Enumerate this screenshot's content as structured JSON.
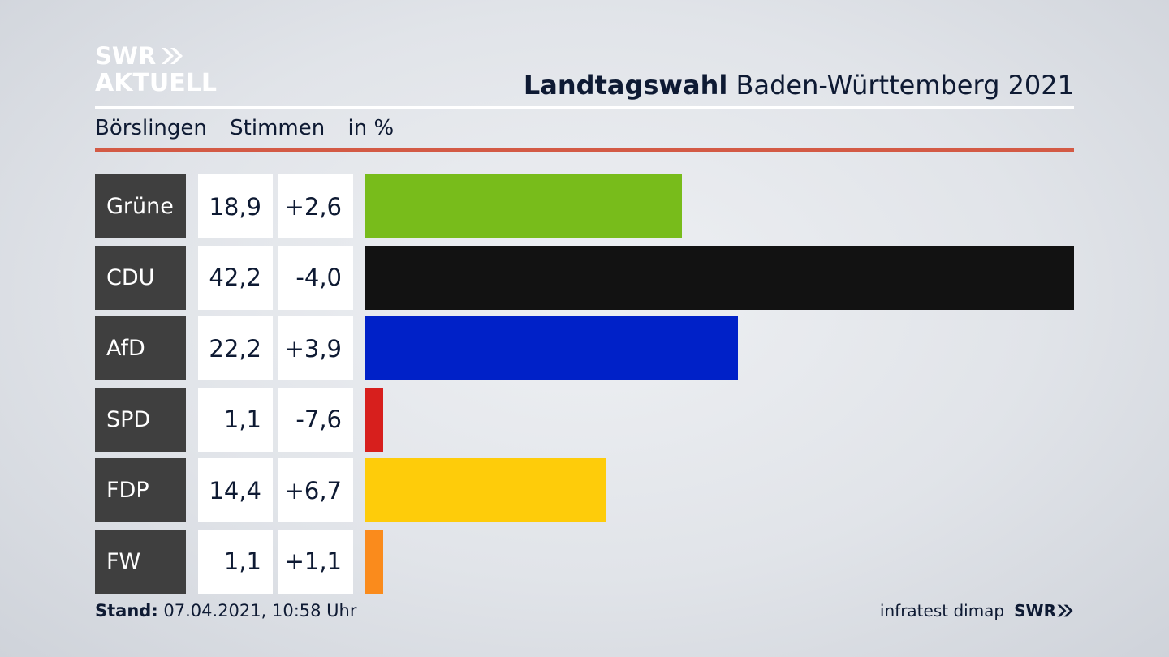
{
  "branding": {
    "logo_line1": "SWR",
    "logo_line2": "AKTUELL",
    "footer_brand": "SWR",
    "brand_color": "#ffffff"
  },
  "header": {
    "title_bold": "Landtagswahl",
    "title_rest": " Baden-Württemberg 2021"
  },
  "subheader": {
    "location": "Börslingen",
    "metric": "Stimmen",
    "unit": "in %",
    "accent_color": "#d35a45"
  },
  "footer": {
    "stand_label": "Stand:",
    "stand_value": " 07.04.2021, 10:58 Uhr",
    "source": "infratest dimap"
  },
  "chart_data": {
    "type": "bar",
    "orientation": "horizontal",
    "categories": [
      "Grüne",
      "CDU",
      "AfD",
      "SPD",
      "FDP",
      "FW"
    ],
    "values": [
      18.9,
      42.2,
      22.2,
      1.1,
      14.4,
      1.1
    ],
    "value_labels": [
      "18,9",
      "42,2",
      "22,2",
      "1,1",
      "14,4",
      "1,1"
    ],
    "change_labels": [
      "+2,6",
      "-4,0",
      "+3,9",
      "-7,6",
      "+6,7",
      "+1,1"
    ],
    "changes": [
      2.6,
      -4.0,
      3.9,
      -7.6,
      6.7,
      1.1
    ],
    "colors": [
      "#78bc1b",
      "#121212",
      "#0021c8",
      "#d71f1d",
      "#fecc0a",
      "#fa8b1c"
    ],
    "xlim": [
      0,
      42.2
    ],
    "grid": false,
    "legend": "none"
  }
}
